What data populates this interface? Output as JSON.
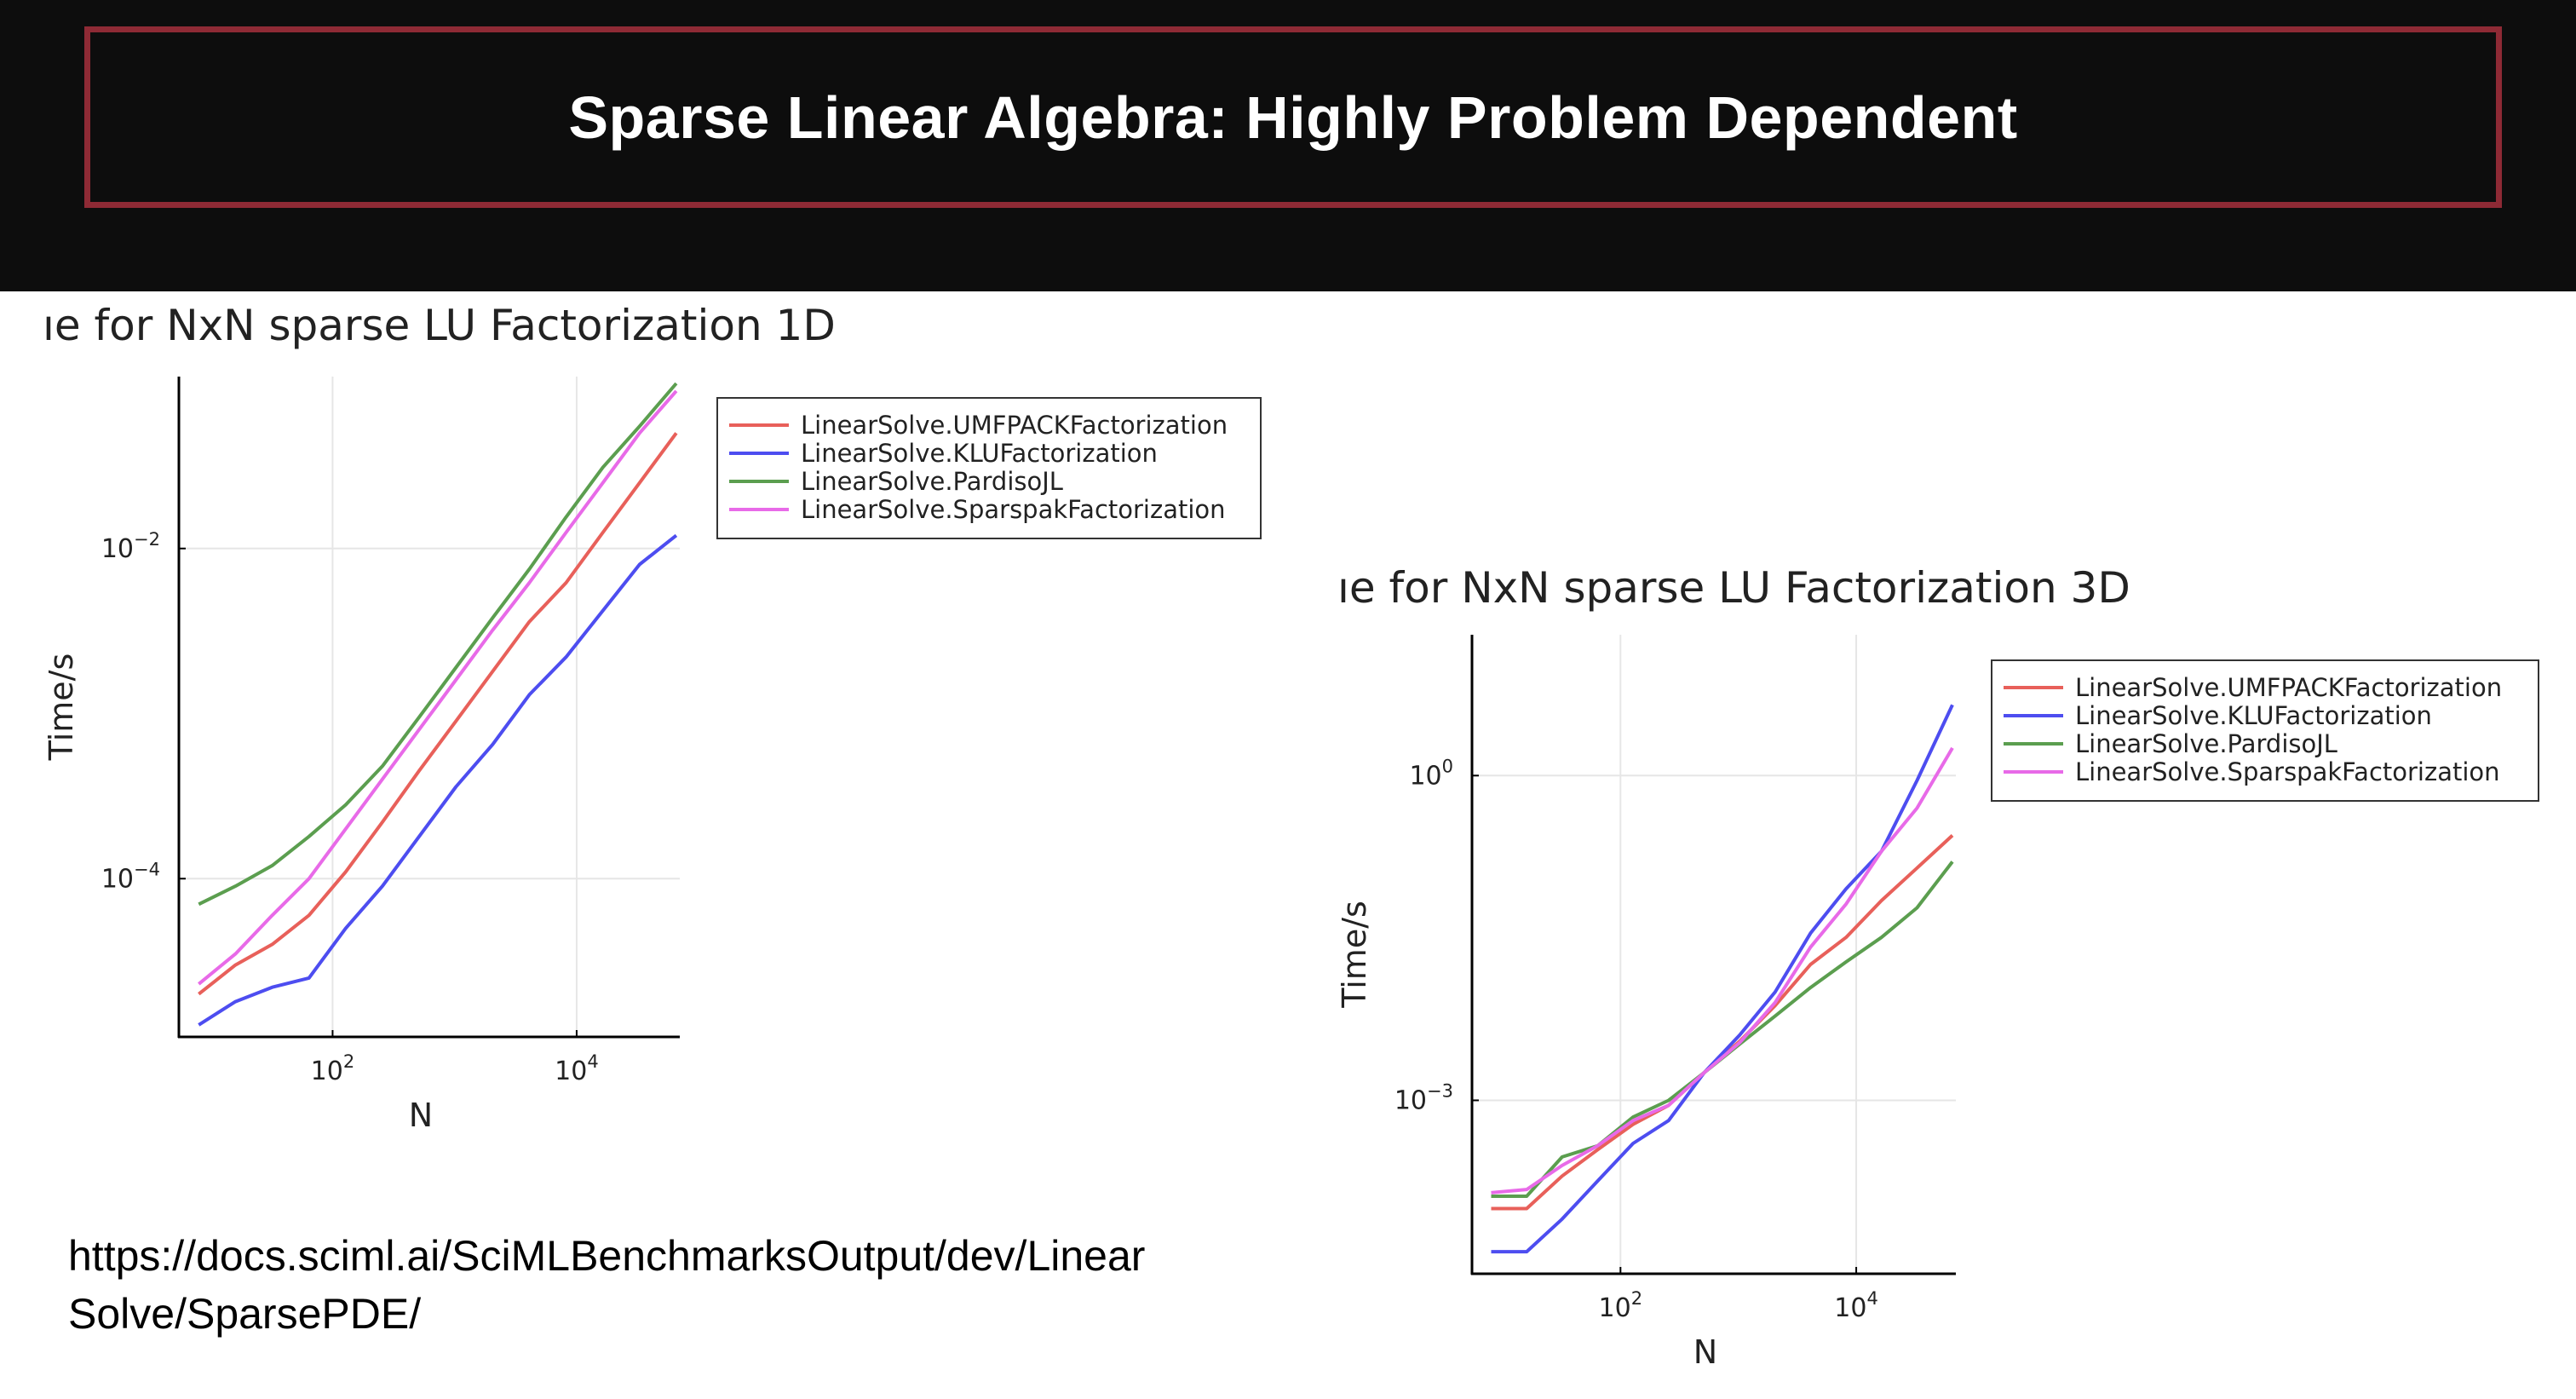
{
  "slide": {
    "title": "Sparse Linear Algebra: Highly Problem Dependent",
    "url_line1": "https://docs.sciml.ai/SciMLBenchmarksOutput/dev/Linear",
    "url_line2": "Solve/SparsePDE/"
  },
  "colors": {
    "header_bg": "#0d0d0d",
    "title_border": "#8e2a35",
    "title_text": "#ffffff"
  },
  "chart_data": [
    {
      "type": "line",
      "title": "ıe for NxN  sparse LU Factorization 1D",
      "xlabel": "N",
      "ylabel": "Time/s",
      "x_scale": "log",
      "y_scale": "log",
      "xlim": [
        5.5,
        70000
      ],
      "ylim": [
        1.1e-05,
        0.11
      ],
      "x_ticks": [
        {
          "value": 100,
          "base": "10",
          "exp": "2"
        },
        {
          "value": 10000,
          "base": "10",
          "exp": "4"
        }
      ],
      "y_ticks": [
        {
          "value": 0.0001,
          "base": "10",
          "exp": "−4"
        },
        {
          "value": 0.01,
          "base": "10",
          "exp": "−2"
        }
      ],
      "grid": true,
      "legend_position": "top-right-outside",
      "series": [
        {
          "name": "LinearSolve.UMFPACKFactorization",
          "color": "#e8605a",
          "x": [
            8,
            16,
            32,
            64,
            128,
            256,
            512,
            1024,
            2048,
            4096,
            8192,
            16384,
            32768,
            65536
          ],
          "y": [
            2e-05,
            3e-05,
            4e-05,
            6e-05,
            0.00011,
            0.00022,
            0.00045,
            0.0009,
            0.0018,
            0.0036,
            0.0062,
            0.0125,
            0.025,
            0.05
          ]
        },
        {
          "name": "LinearSolve.KLUFactorization",
          "color": "#4d4df0",
          "x": [
            8,
            16,
            32,
            64,
            128,
            256,
            512,
            1024,
            2048,
            4096,
            8192,
            16384,
            32768,
            65536
          ],
          "y": [
            1.3e-05,
            1.8e-05,
            2.2e-05,
            2.5e-05,
            5e-05,
            9e-05,
            0.00018,
            0.00036,
            0.00065,
            0.0013,
            0.0022,
            0.0042,
            0.008,
            0.012
          ]
        },
        {
          "name": "LinearSolve.PardisoJL",
          "color": "#5b9e4f",
          "x": [
            8,
            16,
            32,
            64,
            128,
            256,
            512,
            1024,
            2048,
            4096,
            8192,
            16384,
            32768,
            65536
          ],
          "y": [
            7e-05,
            9e-05,
            0.00012,
            0.00018,
            0.00028,
            0.00048,
            0.00095,
            0.0019,
            0.0038,
            0.0075,
            0.0155,
            0.031,
            0.055,
            0.1
          ]
        },
        {
          "name": "LinearSolve.SparspakFactorization",
          "color": "#e86ae8",
          "x": [
            8,
            16,
            32,
            64,
            128,
            256,
            512,
            1024,
            2048,
            4096,
            8192,
            16384,
            32768,
            65536
          ],
          "y": [
            2.3e-05,
            3.5e-05,
            6e-05,
            0.0001,
            0.0002,
            0.0004,
            0.0008,
            0.0016,
            0.0032,
            0.0062,
            0.0125,
            0.025,
            0.05,
            0.09
          ]
        }
      ]
    },
    {
      "type": "line",
      "title": "ıe for NxN  sparse LU Factorization 3D",
      "xlabel": "N",
      "ylabel": "Time/s",
      "x_scale": "log",
      "y_scale": "log",
      "xlim": [
        5.5,
        70000
      ],
      "ylim": [
        2.5e-05,
        20
      ],
      "x_ticks": [
        {
          "value": 100,
          "base": "10",
          "exp": "2"
        },
        {
          "value": 10000,
          "base": "10",
          "exp": "4"
        }
      ],
      "y_ticks": [
        {
          "value": 0.001,
          "base": "10",
          "exp": "−3"
        },
        {
          "value": 1,
          "base": "10",
          "exp": "0"
        }
      ],
      "grid": true,
      "legend_position": "top-right-outside",
      "series": [
        {
          "name": "LinearSolve.UMFPACKFactorization",
          "color": "#e8605a",
          "x": [
            8,
            16,
            32,
            64,
            128,
            256,
            512,
            1024,
            2048,
            4096,
            8192,
            16384,
            32768,
            65536
          ],
          "y": [
            0.0001,
            0.0001,
            0.0002,
            0.00035,
            0.0006,
            0.0009,
            0.0018,
            0.0035,
            0.0075,
            0.018,
            0.032,
            0.07,
            0.14,
            0.28
          ]
        },
        {
          "name": "LinearSolve.KLUFactorization",
          "color": "#4d4df0",
          "x": [
            8,
            16,
            32,
            64,
            128,
            256,
            512,
            1024,
            2048,
            4096,
            8192,
            16384,
            32768,
            65536
          ],
          "y": [
            4e-05,
            4e-05,
            8e-05,
            0.00018,
            0.0004,
            0.00065,
            0.0018,
            0.004,
            0.01,
            0.035,
            0.09,
            0.2,
            0.9,
            4.5
          ]
        },
        {
          "name": "LinearSolve.PardisoJL",
          "color": "#5b9e4f",
          "x": [
            8,
            16,
            32,
            64,
            128,
            256,
            512,
            1024,
            2048,
            4096,
            8192,
            16384,
            32768,
            65536
          ],
          "y": [
            0.00013,
            0.00013,
            0.0003,
            0.00038,
            0.0007,
            0.001,
            0.0018,
            0.0033,
            0.006,
            0.011,
            0.019,
            0.032,
            0.06,
            0.16
          ]
        },
        {
          "name": "LinearSolve.SparspakFactorization",
          "color": "#e86ae8",
          "x": [
            8,
            16,
            32,
            64,
            128,
            256,
            512,
            1024,
            2048,
            4096,
            8192,
            16384,
            32768,
            65536
          ],
          "y": [
            0.00014,
            0.00015,
            0.00025,
            0.00038,
            0.00065,
            0.0009,
            0.0018,
            0.0034,
            0.008,
            0.026,
            0.065,
            0.2,
            0.5,
            1.8
          ]
        }
      ]
    }
  ]
}
